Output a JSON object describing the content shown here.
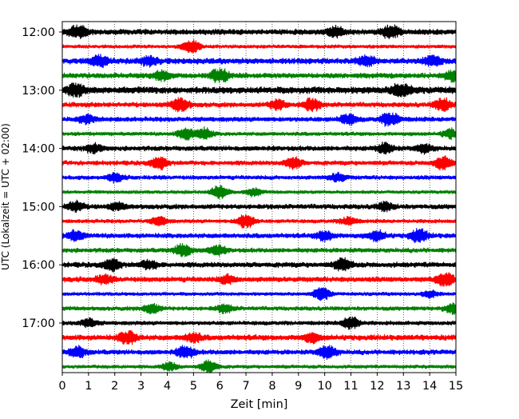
{
  "chart_data": {
    "type": "line",
    "title": "",
    "xlabel": "Zeit  [min]",
    "ylabel": "UTC (Lokalzeit = UTC + 02:00)",
    "xlim": [
      0,
      15
    ],
    "x_ticks": [
      0,
      1,
      2,
      3,
      4,
      5,
      6,
      7,
      8,
      9,
      10,
      11,
      12,
      13,
      14,
      15
    ],
    "x_tick_labels": [
      "0",
      "1",
      "2",
      "3",
      "4",
      "5",
      "6",
      "7",
      "8",
      "9",
      "10",
      "11",
      "12",
      "13",
      "14",
      "15"
    ],
    "y_tick_labels": [
      "12:00",
      "13:00",
      "14:00",
      "15:00",
      "16:00",
      "17:00"
    ],
    "y_ticks_trace_index": [
      0,
      4,
      8,
      12,
      16,
      20
    ],
    "trace_interval_min": 15,
    "grid": "vertical dotted at each minute",
    "legend": "none",
    "color_cycle": [
      "#000000",
      "#ff0000",
      "#0000ff",
      "#008000"
    ],
    "series": [
      {
        "start": "12:00",
        "color": "#000000",
        "base_amp": 0.34,
        "bursts": [
          [
            0.6,
            0.9
          ],
          [
            10.4,
            0.6
          ],
          [
            12.5,
            0.9
          ]
        ]
      },
      {
        "start": "12:15",
        "color": "#ff0000",
        "base_amp": 0.22,
        "bursts": [
          [
            4.9,
            1.0
          ]
        ]
      },
      {
        "start": "12:30",
        "color": "#0000ff",
        "base_amp": 0.36,
        "bursts": [
          [
            1.4,
            0.7
          ],
          [
            3.3,
            0.5
          ],
          [
            11.6,
            0.6
          ],
          [
            14.1,
            0.6
          ]
        ]
      },
      {
        "start": "12:45",
        "color": "#008000",
        "base_amp": 0.32,
        "bursts": [
          [
            3.8,
            0.6
          ],
          [
            6.0,
            1.0
          ],
          [
            14.9,
            0.7
          ]
        ]
      },
      {
        "start": "13:00",
        "color": "#000000",
        "base_amp": 0.42,
        "bursts": [
          [
            0.5,
            0.8
          ],
          [
            12.9,
            0.9
          ]
        ]
      },
      {
        "start": "13:15",
        "color": "#ff0000",
        "base_amp": 0.3,
        "bursts": [
          [
            4.5,
            0.9
          ],
          [
            8.2,
            0.6
          ],
          [
            9.5,
            0.8
          ],
          [
            14.5,
            0.8
          ]
        ]
      },
      {
        "start": "13:30",
        "color": "#0000ff",
        "base_amp": 0.3,
        "bursts": [
          [
            0.9,
            0.5
          ],
          [
            10.9,
            0.6
          ],
          [
            12.5,
            1.0
          ]
        ]
      },
      {
        "start": "13:45",
        "color": "#008000",
        "base_amp": 0.24,
        "bursts": [
          [
            4.7,
            0.7
          ],
          [
            5.4,
            0.7
          ],
          [
            14.8,
            0.6
          ]
        ]
      },
      {
        "start": "14:00",
        "color": "#000000",
        "base_amp": 0.3,
        "bursts": [
          [
            1.2,
            0.5
          ],
          [
            12.3,
            0.6
          ],
          [
            13.8,
            0.5
          ]
        ]
      },
      {
        "start": "14:15",
        "color": "#ff0000",
        "base_amp": 0.28,
        "bursts": [
          [
            3.7,
            0.8
          ],
          [
            8.8,
            0.7
          ],
          [
            14.5,
            0.9
          ]
        ]
      },
      {
        "start": "14:30",
        "color": "#0000ff",
        "base_amp": 0.26,
        "bursts": [
          [
            2.0,
            0.5
          ],
          [
            10.5,
            0.5
          ]
        ]
      },
      {
        "start": "14:45",
        "color": "#008000",
        "base_amp": 0.2,
        "bursts": [
          [
            6.0,
            0.9
          ],
          [
            7.3,
            0.5
          ]
        ]
      },
      {
        "start": "15:00",
        "color": "#000000",
        "base_amp": 0.3,
        "bursts": [
          [
            0.5,
            0.6
          ],
          [
            2.1,
            0.4
          ],
          [
            12.3,
            0.5
          ]
        ]
      },
      {
        "start": "15:15",
        "color": "#ff0000",
        "base_amp": 0.24,
        "bursts": [
          [
            3.7,
            0.5
          ],
          [
            7.0,
            1.0
          ],
          [
            10.9,
            0.5
          ]
        ]
      },
      {
        "start": "15:30",
        "color": "#0000ff",
        "base_amp": 0.3,
        "bursts": [
          [
            0.5,
            0.6
          ],
          [
            10.0,
            0.6
          ],
          [
            12.0,
            0.6
          ],
          [
            13.6,
            0.9
          ]
        ]
      },
      {
        "start": "15:45",
        "color": "#008000",
        "base_amp": 0.28,
        "bursts": [
          [
            4.6,
            0.8
          ],
          [
            5.9,
            0.6
          ]
        ]
      },
      {
        "start": "16:00",
        "color": "#000000",
        "base_amp": 0.32,
        "bursts": [
          [
            1.9,
            0.8
          ],
          [
            3.3,
            0.5
          ],
          [
            10.7,
            0.8
          ]
        ]
      },
      {
        "start": "16:15",
        "color": "#ff0000",
        "base_amp": 0.32,
        "bursts": [
          [
            1.6,
            0.5
          ],
          [
            6.3,
            0.5
          ],
          [
            14.6,
            0.9
          ]
        ]
      },
      {
        "start": "16:30",
        "color": "#0000ff",
        "base_amp": 0.22,
        "bursts": [
          [
            9.9,
            0.8
          ],
          [
            14.0,
            0.4
          ]
        ]
      },
      {
        "start": "16:45",
        "color": "#008000",
        "base_amp": 0.26,
        "bursts": [
          [
            3.4,
            0.6
          ],
          [
            6.2,
            0.5
          ],
          [
            14.9,
            0.6
          ]
        ]
      },
      {
        "start": "17:00",
        "color": "#000000",
        "base_amp": 0.26,
        "bursts": [
          [
            1.0,
            0.5
          ],
          [
            11.0,
            0.8
          ]
        ]
      },
      {
        "start": "17:15",
        "color": "#ff0000",
        "base_amp": 0.34,
        "bursts": [
          [
            2.5,
            0.9
          ],
          [
            5.0,
            0.5
          ],
          [
            9.5,
            0.5
          ]
        ]
      },
      {
        "start": "17:30",
        "color": "#0000ff",
        "base_amp": 0.3,
        "bursts": [
          [
            0.6,
            0.7
          ],
          [
            4.7,
            0.8
          ],
          [
            10.1,
            0.9
          ]
        ]
      },
      {
        "start": "17:45",
        "color": "#008000",
        "base_amp": 0.22,
        "bursts": [
          [
            4.1,
            0.5
          ],
          [
            5.6,
            0.8
          ]
        ]
      }
    ]
  }
}
